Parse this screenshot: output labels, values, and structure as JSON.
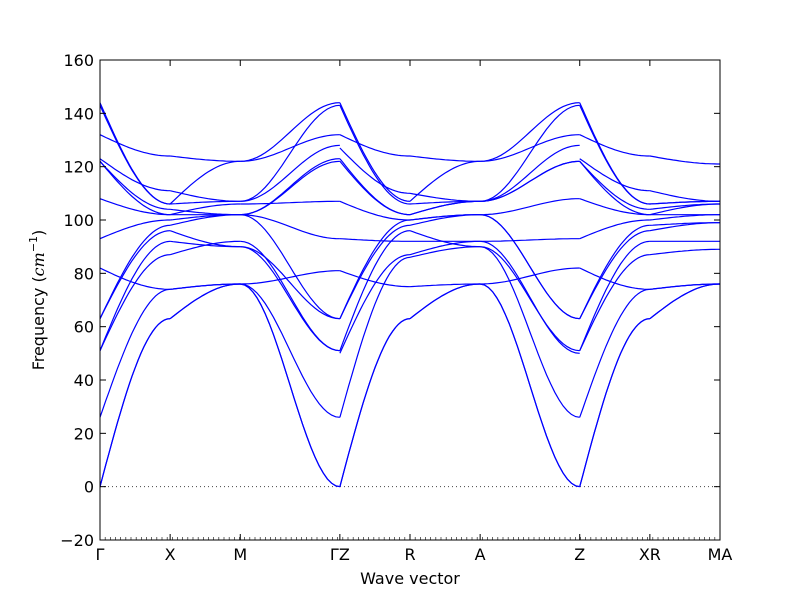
{
  "chart_data": {
    "type": "line",
    "xlabel": "Wave vector",
    "ylabel_prefix": "Frequency (",
    "ylabel_unit_base": "cm",
    "ylabel_unit_exp": "−1",
    "ylabel_suffix": ")",
    "ylim": [
      -20,
      160
    ],
    "yticks": [
      -20,
      0,
      20,
      40,
      60,
      80,
      100,
      120,
      140,
      160
    ],
    "ytick_labels": [
      "−20",
      "0",
      "20",
      "40",
      "60",
      "80",
      "100",
      "120",
      "140",
      "160"
    ],
    "grid": false,
    "zero_line": "dotted",
    "line_color": "#0000ff",
    "path_points": [
      {
        "label": "Γ",
        "x": 0
      },
      {
        "label": "X",
        "x": 0.5
      },
      {
        "label": "M",
        "x": 1.0
      },
      {
        "label": "ΓZ",
        "x": 1.71
      },
      {
        "label": "R",
        "x": 2.21
      },
      {
        "label": "A",
        "x": 2.71
      },
      {
        "label": "Z",
        "x": 3.42
      },
      {
        "label": "XR",
        "x": 3.92
      },
      {
        "label": "MA",
        "x": 4.42
      }
    ],
    "segments": [
      {
        "from": "Γ",
        "to": "X",
        "x": [
          0,
          0.5
        ],
        "bands": [
          [
            0,
            63
          ],
          [
            0,
            63
          ],
          [
            26,
            74
          ],
          [
            51,
            87
          ],
          [
            51,
            92
          ],
          [
            63,
            96
          ],
          [
            63,
            98
          ],
          [
            82,
            74
          ],
          [
            93,
            100
          ],
          [
            108,
            102
          ],
          [
            122,
            102
          ],
          [
            122,
            104
          ],
          [
            123,
            111
          ],
          [
            132,
            124
          ],
          [
            143,
            106
          ],
          [
            144,
            106
          ]
        ]
      },
      {
        "from": "X",
        "to": "M",
        "x": [
          0.5,
          1.0
        ],
        "bands": [
          [
            63,
            76
          ],
          [
            63,
            76
          ],
          [
            74,
            76
          ],
          [
            87,
            92
          ],
          [
            92,
            90
          ],
          [
            96,
            90
          ],
          [
            98,
            102
          ],
          [
            74,
            76
          ],
          [
            100,
            102
          ],
          [
            102,
            106
          ],
          [
            102,
            102
          ],
          [
            104,
            102
          ],
          [
            111,
            107
          ],
          [
            124,
            122
          ],
          [
            106,
            107
          ],
          [
            106,
            122
          ]
        ]
      },
      {
        "from": "ΓZ",
        "to": "R",
        "x": [
          1.71,
          2.21
        ],
        "bands": [
          [
            0,
            63
          ],
          [
            0,
            63
          ],
          [
            26,
            86
          ],
          [
            50,
            87
          ],
          [
            51,
            96
          ],
          [
            63,
            98
          ],
          [
            63,
            100
          ],
          [
            81,
            75
          ],
          [
            93,
            92
          ],
          [
            107,
            100
          ],
          [
            122,
            102
          ],
          [
            123,
            102
          ],
          [
            127,
            110
          ],
          [
            132,
            124
          ],
          [
            143,
            106
          ],
          [
            144,
            107
          ]
        ]
      },
      {
        "from": "R",
        "to": "A",
        "x": [
          2.21,
          2.71
        ],
        "bands": [
          [
            63,
            76
          ],
          [
            63,
            76
          ],
          [
            86,
            90
          ],
          [
            87,
            92
          ],
          [
            96,
            90
          ],
          [
            98,
            102
          ],
          [
            100,
            102
          ],
          [
            75,
            76
          ],
          [
            92,
            92
          ],
          [
            100,
            102
          ],
          [
            102,
            107
          ],
          [
            102,
            107
          ],
          [
            110,
            107
          ],
          [
            124,
            122
          ],
          [
            106,
            107
          ],
          [
            107,
            122
          ]
        ]
      },
      {
        "from": "Z",
        "to": "XR",
        "x": [
          3.42,
          3.92
        ],
        "bands": [
          [
            0,
            63
          ],
          [
            0,
            63
          ],
          [
            26,
            74
          ],
          [
            51,
            87
          ],
          [
            51,
            92
          ],
          [
            63,
            96
          ],
          [
            63,
            98
          ],
          [
            82,
            74
          ],
          [
            93,
            100
          ],
          [
            108,
            102
          ],
          [
            122,
            102
          ],
          [
            122,
            104
          ],
          [
            123,
            111
          ],
          [
            132,
            124
          ],
          [
            143,
            106
          ],
          [
            144,
            106
          ]
        ]
      },
      {
        "from": "XR",
        "to": "MA",
        "x": [
          3.92,
          4.42
        ],
        "bands": [
          [
            63,
            76
          ],
          [
            63,
            76
          ],
          [
            74,
            76
          ],
          [
            87,
            89
          ],
          [
            92,
            92
          ],
          [
            96,
            99
          ],
          [
            98,
            99
          ],
          [
            74,
            76
          ],
          [
            100,
            102
          ],
          [
            102,
            102
          ],
          [
            102,
            106
          ],
          [
            104,
            106
          ],
          [
            111,
            107
          ],
          [
            124,
            121
          ],
          [
            106,
            107
          ],
          [
            106,
            107
          ]
        ]
      }
    ],
    "special_segments": [
      {
        "from": "M",
        "to": "ΓZ",
        "x": [
          1.0,
          1.71
        ],
        "note": "hump",
        "bands": [
          [
            76,
            0
          ],
          [
            76,
            0
          ],
          [
            76,
            26
          ],
          [
            92,
            51
          ],
          [
            90,
            51
          ],
          [
            90,
            63
          ],
          [
            102,
            63
          ],
          [
            76,
            81
          ],
          [
            102,
            93
          ],
          [
            106,
            107
          ],
          [
            102,
            122
          ],
          [
            102,
            123
          ],
          [
            107,
            128
          ],
          [
            122,
            132
          ],
          [
            107,
            143
          ],
          [
            122,
            144
          ]
        ]
      },
      {
        "from": "A",
        "to": "Z",
        "x": [
          2.71,
          3.42
        ],
        "note": "hump",
        "bands": [
          [
            76,
            0
          ],
          [
            76,
            0
          ],
          [
            90,
            26
          ],
          [
            92,
            50
          ],
          [
            90,
            51
          ],
          [
            102,
            63
          ],
          [
            102,
            63
          ],
          [
            76,
            82
          ],
          [
            92,
            93
          ],
          [
            102,
            108
          ],
          [
            107,
            122
          ],
          [
            107,
            122
          ],
          [
            107,
            128
          ],
          [
            122,
            132
          ],
          [
            107,
            143
          ],
          [
            122,
            144
          ]
        ]
      }
    ]
  }
}
